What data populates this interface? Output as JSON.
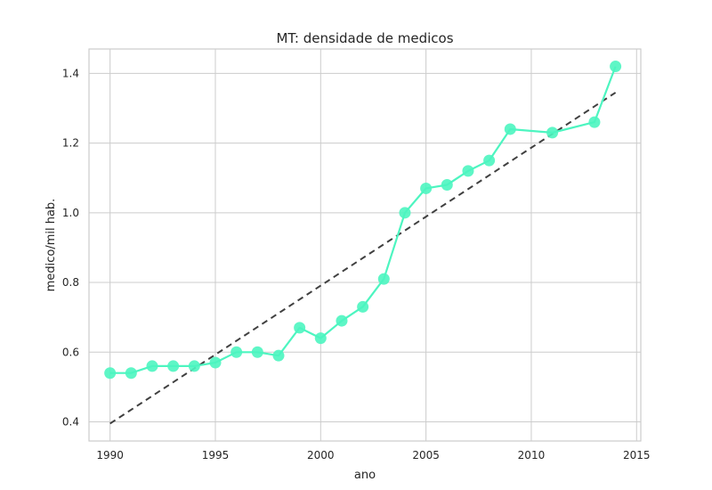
{
  "chart_data": {
    "type": "line",
    "title": "MT: densidade de medicos",
    "xlabel": "ano",
    "ylabel": "medico/mil hab.",
    "xlim": [
      1989,
      2015.2
    ],
    "ylim": [
      0.345,
      1.47
    ],
    "xticks": [
      1990,
      1995,
      2000,
      2005,
      2010,
      2015
    ],
    "yticks": [
      0.4,
      0.6,
      0.8,
      1.0,
      1.2,
      1.4
    ],
    "ytick_labels": [
      "0.4",
      "0.6",
      "0.8",
      "1.0",
      "1.2",
      "1.4"
    ],
    "grid": true,
    "series": [
      {
        "style": "line-with-markers",
        "color": "#4df5c0",
        "x": [
          1990,
          1991,
          1992,
          1993,
          1994,
          1995,
          1996,
          1997,
          1998,
          1999,
          2000,
          2001,
          2002,
          2003,
          2004,
          2005,
          2006,
          2007,
          2008,
          2009,
          2011,
          2013,
          2014
        ],
        "y": [
          0.54,
          0.54,
          0.56,
          0.56,
          0.56,
          0.57,
          0.6,
          0.6,
          0.59,
          0.67,
          0.64,
          0.69,
          0.73,
          0.81,
          1.0,
          1.07,
          1.08,
          1.12,
          1.15,
          1.24,
          1.23,
          1.26,
          1.42
        ]
      },
      {
        "style": "dashed-trend",
        "color": "#404040",
        "x": [
          1990,
          2014
        ],
        "y": [
          0.395,
          1.345
        ]
      }
    ]
  }
}
